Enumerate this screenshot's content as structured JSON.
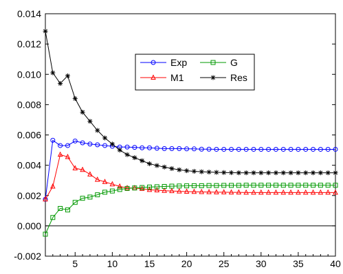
{
  "chart_data": {
    "type": "line",
    "title": "",
    "xlabel": "",
    "ylabel": "",
    "xlim": [
      1,
      40
    ],
    "ylim": [
      -0.002,
      0.014
    ],
    "x_ticks": [
      5,
      10,
      15,
      20,
      25,
      30,
      35,
      40
    ],
    "x_tick_labels": [
      "5",
      "10",
      "15",
      "20",
      "25",
      "30",
      "35",
      "40"
    ],
    "y_ticks": [
      -0.002,
      0.0,
      0.002,
      0.004,
      0.006,
      0.008,
      0.01,
      0.012,
      0.014
    ],
    "y_tick_labels": [
      "-0.002",
      "0.000",
      "0.002",
      "0.004",
      "0.006",
      "0.008",
      "0.010",
      "0.012",
      "0.014"
    ],
    "zero_line": true,
    "grid": false,
    "legend_position": "upper-center",
    "x": [
      1,
      2,
      3,
      4,
      5,
      6,
      7,
      8,
      9,
      10,
      11,
      12,
      13,
      14,
      15,
      16,
      17,
      18,
      19,
      20,
      21,
      22,
      23,
      24,
      25,
      26,
      27,
      28,
      29,
      30,
      31,
      32,
      33,
      34,
      35,
      36,
      37,
      38,
      39,
      40
    ],
    "series": [
      {
        "name": "Exp",
        "color": "#0000ff",
        "marker": "circle",
        "values": [
          0.00175,
          0.00565,
          0.0053,
          0.0053,
          0.0056,
          0.00548,
          0.0054,
          0.00535,
          0.0053,
          0.00525,
          0.0052,
          0.0052,
          0.00518,
          0.00515,
          0.00515,
          0.00512,
          0.0051,
          0.0051,
          0.0051,
          0.00508,
          0.00508,
          0.00506,
          0.00506,
          0.00505,
          0.00505,
          0.00505,
          0.00505,
          0.00505,
          0.00505,
          0.00505,
          0.00505,
          0.00505,
          0.00505,
          0.00505,
          0.00505,
          0.00505,
          0.00505,
          0.00505,
          0.00505,
          0.00505
        ]
      },
      {
        "name": "M1",
        "color": "#ff0000",
        "marker": "triangle",
        "values": [
          0.00175,
          0.0026,
          0.0047,
          0.00455,
          0.0038,
          0.0037,
          0.0034,
          0.00305,
          0.0029,
          0.00275,
          0.0026,
          0.0025,
          0.0025,
          0.00245,
          0.00238,
          0.00235,
          0.00232,
          0.0023,
          0.00228,
          0.00226,
          0.00225,
          0.00224,
          0.00223,
          0.00222,
          0.00222,
          0.00221,
          0.00221,
          0.0022,
          0.0022,
          0.0022,
          0.0022,
          0.0022,
          0.0022,
          0.0022,
          0.0022,
          0.0022,
          0.0022,
          0.0022,
          0.0022,
          0.0022
        ]
      },
      {
        "name": "G",
        "color": "#009900",
        "marker": "square",
        "values": [
          -0.00055,
          0.00055,
          0.00115,
          0.00105,
          0.00155,
          0.00182,
          0.0019,
          0.00205,
          0.00222,
          0.0023,
          0.0024,
          0.00247,
          0.0025,
          0.00253,
          0.00256,
          0.00258,
          0.0026,
          0.00262,
          0.00263,
          0.00264,
          0.00265,
          0.00265,
          0.00266,
          0.00266,
          0.00267,
          0.00267,
          0.00267,
          0.00268,
          0.00268,
          0.00268,
          0.00268,
          0.00268,
          0.00268,
          0.00268,
          0.00268,
          0.00268,
          0.00268,
          0.00268,
          0.00268,
          0.00268
        ]
      },
      {
        "name": "Res",
        "color": "#000000",
        "marker": "star",
        "values": [
          0.01285,
          0.0101,
          0.0094,
          0.0099,
          0.0084,
          0.0075,
          0.0069,
          0.0063,
          0.0058,
          0.0054,
          0.005,
          0.0047,
          0.0045,
          0.0043,
          0.0041,
          0.00398,
          0.00388,
          0.00378,
          0.0037,
          0.00364,
          0.0036,
          0.00357,
          0.00355,
          0.00353,
          0.00352,
          0.00351,
          0.0035,
          0.0035,
          0.0035,
          0.0035,
          0.0035,
          0.0035,
          0.0035,
          0.0035,
          0.0035,
          0.0035,
          0.0035,
          0.0035,
          0.0035,
          0.0035
        ]
      }
    ]
  }
}
